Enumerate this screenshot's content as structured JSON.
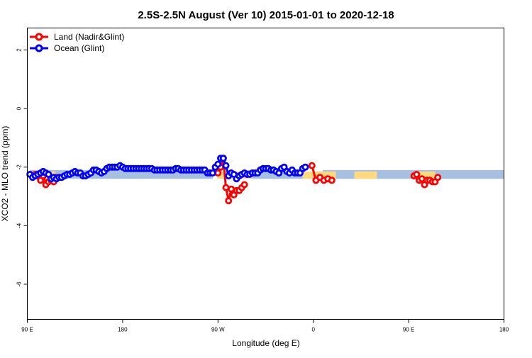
{
  "chart_data": {
    "type": "line",
    "title": "2.5S-2.5N August (Ver 10)   2015-01-01 to 2020-12-18",
    "xlabel": "Longitude (deg E)",
    "ylabel": "XCO2 - MLO trend (ppm)",
    "xlim": [
      90,
      450
    ],
    "ylim": [
      -7.2,
      2.75
    ],
    "x_ticks": [
      90,
      162,
      234,
      306,
      378,
      450
    ],
    "x_tick_labels": [
      "90 E",
      "180",
      "90 W",
      "0",
      "90 E",
      "180"
    ],
    "y_ticks": [
      2,
      0,
      -2,
      -4,
      -6
    ],
    "y_tick_labels": [
      "2",
      "0",
      "-2",
      "-4",
      "-6"
    ],
    "legend": [
      "Land (Nadir&Glint)",
      "Ocean (Glint)"
    ],
    "series": [
      {
        "name": "Land (Nadir&Glint)",
        "color": "#ff0000",
        "band_color": "#ffd980",
        "band": [
          {
            "x": [
              93,
              111
            ],
            "lo": -2.4,
            "hi": -2.15
          },
          {
            "x": [
              233.5,
              260
            ],
            "lo": -2.4,
            "hi": -2.15
          },
          {
            "x": [
              298,
              323
            ],
            "lo": -2.4,
            "hi": -2.15
          },
          {
            "x": [
              337,
              354
            ],
            "lo": -2.4,
            "hi": -2.15
          },
          {
            "x": [
              385,
              398
            ],
            "lo": -2.4,
            "hi": -2.15
          }
        ],
        "segments": [
          {
            "x": [
              96,
              98,
              100,
              102,
              104,
              106,
              108,
              110,
              112
            ],
            "y": [
              -2.25,
              -2.3,
              -2.45,
              -2.3,
              -2.6,
              -2.5,
              -2.45,
              -2.5,
              -2.35
            ]
          },
          {
            "x": [
              234,
              236,
              238,
              240,
              242,
              244,
              246,
              248,
              250,
              252,
              254
            ],
            "y": [
              -2.2,
              -2.0,
              -1.7,
              -2.7,
              -3.15,
              -2.75,
              -2.95,
              -2.8,
              -2.8,
              -2.7,
              -2.6
            ]
          },
          {
            "x": [
              305,
              308,
              311,
              314,
              317,
              320
            ],
            "y": [
              -1.95,
              -2.45,
              -2.35,
              -2.45,
              -2.4,
              -2.45
            ]
          },
          {
            "x": [
              382,
              384,
              386,
              388,
              390,
              392,
              394,
              396,
              398,
              400
            ],
            "y": [
              -2.3,
              -2.25,
              -2.45,
              -2.4,
              -2.6,
              -2.45,
              -2.45,
              -2.5,
              -2.5,
              -2.35
            ]
          }
        ]
      },
      {
        "name": "Ocean (Glint)",
        "color": "#0000ff",
        "band_color": "#a7c0e0",
        "band": [
          {
            "x": [
              92,
              230
            ],
            "lo": -2.4,
            "hi": -2.1
          },
          {
            "x": [
              230,
              237
            ],
            "lo": -2.3,
            "hi": -2.05
          },
          {
            "x": [
              254,
              300
            ],
            "lo": -2.4,
            "hi": -2.1
          },
          {
            "x": [
              313,
              450
            ],
            "lo": -2.4,
            "hi": -2.1
          }
        ],
        "segments": [
          {
            "x": [
              92,
              94,
              96,
              98,
              100,
              102,
              104,
              106,
              108,
              110,
              112,
              114,
              116,
              118,
              120,
              122,
              124,
              126,
              128,
              130,
              132,
              134,
              136,
              138,
              140,
              142,
              144,
              146,
              148,
              150,
              152,
              154,
              156,
              158,
              160,
              162,
              164,
              166,
              168,
              170,
              172,
              174,
              176,
              178,
              180,
              182,
              184,
              186,
              188,
              190,
              192,
              194,
              196,
              198,
              200,
              202,
              204,
              206,
              208,
              210,
              212,
              214,
              216,
              218,
              220,
              222,
              224,
              226,
              228,
              230,
              232,
              234,
              236,
              238,
              240,
              242,
              244,
              246,
              248,
              250,
              252,
              254,
              256,
              258,
              260,
              262,
              264,
              266,
              268,
              270,
              272,
              274,
              276,
              278,
              280,
              282,
              284,
              286,
              288,
              290,
              292,
              294,
              296,
              298,
              300
            ],
            "y": [
              -2.25,
              -2.35,
              -2.3,
              -2.25,
              -2.2,
              -2.15,
              -2.2,
              -2.25,
              -2.4,
              -2.35,
              -2.4,
              -2.35,
              -2.35,
              -2.3,
              -2.25,
              -2.25,
              -2.2,
              -2.15,
              -2.2,
              -2.2,
              -2.3,
              -2.3,
              -2.25,
              -2.2,
              -2.1,
              -2.1,
              -2.15,
              -2.2,
              -2.15,
              -2.05,
              -2.0,
              -2.0,
              -2.0,
              -2.0,
              -1.95,
              -2.0,
              -2.05,
              -2.05,
              -2.05,
              -2.05,
              -2.05,
              -2.05,
              -2.05,
              -2.05,
              -2.05,
              -2.05,
              -2.05,
              -2.1,
              -2.1,
              -2.1,
              -2.1,
              -2.1,
              -2.1,
              -2.1,
              -2.1,
              -2.05,
              -2.05,
              -2.1,
              -2.1,
              -2.1,
              -2.1,
              -2.1,
              -2.1,
              -2.1,
              -2.1,
              -2.1,
              -2.1,
              -2.2,
              -2.2,
              -2.2,
              -2.0,
              -1.9,
              -1.7,
              -1.7,
              -1.95,
              -2.3,
              -2.2,
              -2.25,
              -2.4,
              -2.3,
              -2.25,
              -2.2,
              -2.25,
              -2.25,
              -2.2,
              -2.2,
              -2.2,
              -2.1,
              -2.05,
              -2.05,
              -2.05,
              -2.1,
              -2.1,
              -2.15,
              -2.2,
              -2.05,
              -2.0,
              -2.15,
              -2.2,
              -2.1,
              -2.2,
              -2.2,
              -2.2,
              -2.05,
              -2.0
            ]
          }
        ]
      }
    ]
  }
}
